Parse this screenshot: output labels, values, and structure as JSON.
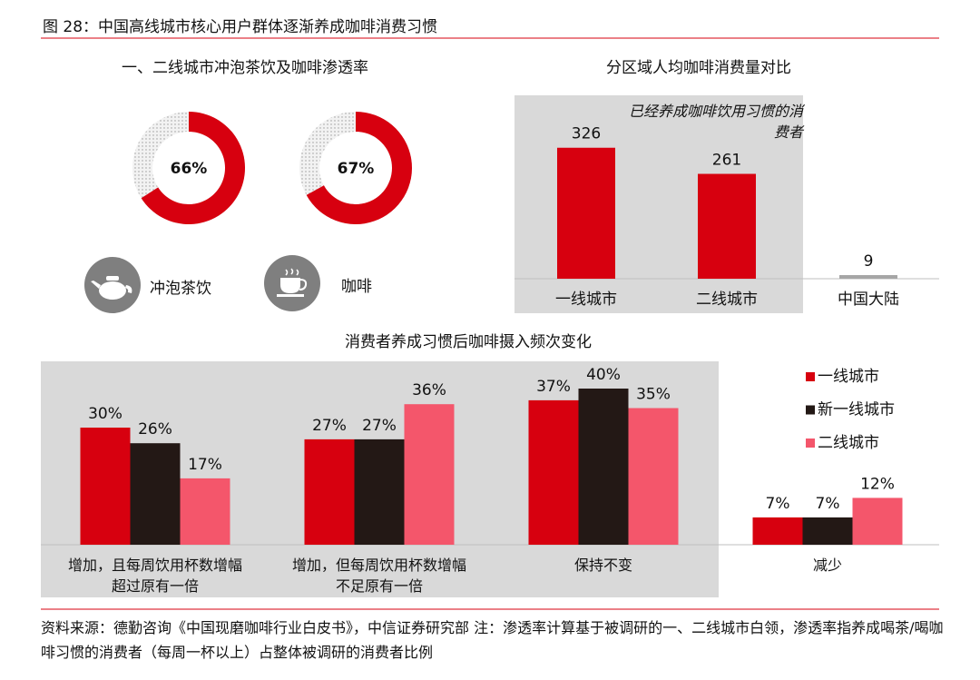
{
  "figure_title": "图 28：中国高线城市核心用户群体逐渐养成咖啡消费习惯",
  "source": "资料来源：德勤咨询《中国现磨咖啡行业白皮书》，中信证券研究部 注：渗透率计算基于被调研的一、二线城市白领，渗透率指养成喝茶/喝咖啡习惯的消费者（每周一杯以上）占整体被调研的消费者比例",
  "chart_data": [
    {
      "type": "donut",
      "title": "一、二线城市冲泡茶饮及咖啡渗透率",
      "categories": [
        "冲泡茶饮",
        "咖啡"
      ],
      "values": [
        66,
        67
      ],
      "value_labels": [
        "66%",
        "67%"
      ],
      "color": "#d7000f"
    },
    {
      "type": "bar",
      "title": "分区域人均咖啡消费量对比",
      "annotation": "已经养成咖啡饮用习惯的消费者",
      "categories": [
        "一线城市",
        "二线城市",
        "中国大陆"
      ],
      "values": [
        326,
        261,
        9
      ],
      "colors": [
        "#d7000f",
        "#d7000f",
        "#a6a6a6"
      ],
      "ylim": [
        0,
        400
      ]
    },
    {
      "type": "grouped_bar",
      "title": "消费者养成习惯后咖啡摄入频次变化",
      "categories": [
        "增加，且每周饮用杯数增幅超过原有一倍",
        "增加，但每周饮用杯数增幅不足原有一倍",
        "保持不变",
        "减少"
      ],
      "series": [
        {
          "name": "一线城市",
          "color": "#d7000f",
          "values": [
            30,
            27,
            37,
            7
          ],
          "value_labels": [
            "30%",
            "27%",
            "37%",
            "7%"
          ]
        },
        {
          "name": "新一线城市",
          "color": "#231815",
          "values": [
            26,
            27,
            40,
            7
          ],
          "value_labels": [
            "26%",
            "27%",
            "40%",
            "7%"
          ]
        },
        {
          "name": "二线城市",
          "color": "#f4566b",
          "values": [
            17,
            36,
            35,
            12
          ],
          "value_labels": [
            "17%",
            "36%",
            "35%",
            "12%"
          ]
        }
      ],
      "ylim": [
        0,
        50
      ],
      "legend": "right"
    }
  ]
}
